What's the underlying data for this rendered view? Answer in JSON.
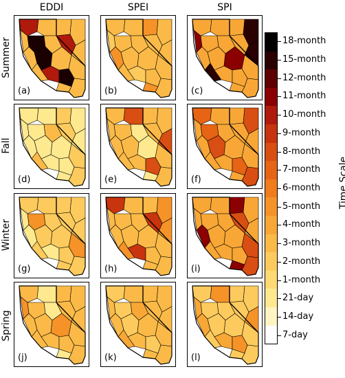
{
  "columns": [
    {
      "key": "eddi",
      "title": "EDDI"
    },
    {
      "key": "spei",
      "title": "SPEI"
    },
    {
      "key": "spi",
      "title": "SPI"
    }
  ],
  "rows": [
    {
      "key": "summer",
      "title": "Summer"
    },
    {
      "key": "fall",
      "title": "Fall"
    },
    {
      "key": "winter",
      "title": "Winter"
    },
    {
      "key": "spring",
      "title": "Spring"
    }
  ],
  "panels": [
    {
      "label": "(a)"
    },
    {
      "label": "(b)"
    },
    {
      "label": "(c)"
    },
    {
      "label": "(d)"
    },
    {
      "label": "(e)"
    },
    {
      "label": "(f)"
    },
    {
      "label": "(g)"
    },
    {
      "label": "(h)"
    },
    {
      "label": "(i)"
    },
    {
      "label": "(j)"
    },
    {
      "label": "(k)"
    },
    {
      "label": "(l)"
    }
  ],
  "colorbar": {
    "title": "Time Scale",
    "labels": [
      "18-month",
      "15-month",
      "12-month",
      "11-month",
      "10-month",
      "9-month",
      "8-month",
      "7-month",
      "6-month",
      "5-month",
      "4-month",
      "3-month",
      "2-month",
      "1-month",
      "21-day",
      "14-day",
      "7-day"
    ],
    "colors": [
      "#000000",
      "#2a0000",
      "#5e0000",
      "#8b0000",
      "#b01a0c",
      "#c8340e",
      "#d94e12",
      "#e66414",
      "#f07c1c",
      "#f59228",
      "#f8a736",
      "#fbba48",
      "#fdcb5d",
      "#feda73",
      "#fee98f",
      "#fff5c2",
      "#ffffff"
    ]
  },
  "panel_fills": [
    {
      "base": "#fbba48",
      "accent": "#b01a0c",
      "accent2": "#1a0000"
    },
    {
      "base": "#fbba48",
      "accent": "#f59228",
      "accent2": "#fdcb5d"
    },
    {
      "base": "#f8a736",
      "accent": "#8b0000",
      "accent2": "#2a0000"
    },
    {
      "base": "#fee98f",
      "accent": "#fbba48",
      "accent2": "#fdcb5d"
    },
    {
      "base": "#fbba48",
      "accent": "#d94e12",
      "accent2": "#fee98f"
    },
    {
      "base": "#f8a736",
      "accent": "#d94e12",
      "accent2": "#e66414"
    },
    {
      "base": "#fdcb5d",
      "accent": "#f59228",
      "accent2": "#fee98f"
    },
    {
      "base": "#fbba48",
      "accent": "#c8340e",
      "accent2": "#f59228"
    },
    {
      "base": "#f8a736",
      "accent": "#8b0000",
      "accent2": "#d94e12"
    },
    {
      "base": "#fbba48",
      "accent": "#f59228",
      "accent2": "#fee98f"
    },
    {
      "base": "#fbba48",
      "accent": "#f8a736",
      "accent2": "#fdcb5d"
    },
    {
      "base": "#fdcb5d",
      "accent": "#f59228",
      "accent2": "#f8a736"
    }
  ]
}
